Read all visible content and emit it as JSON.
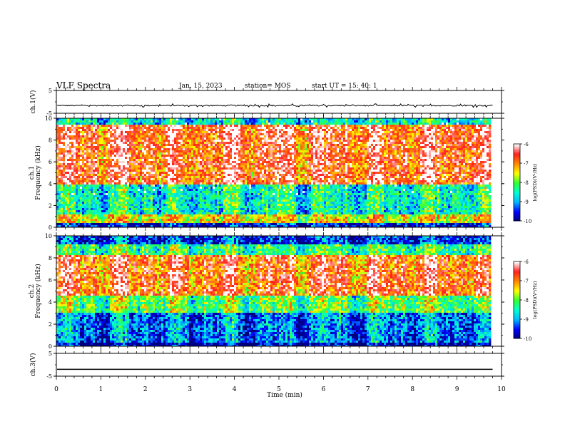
{
  "header": {
    "title": "VLF Spectra",
    "date": "Jan. 15, 2023",
    "station": "station= MOS",
    "start": "start UT =  15: 40: 1"
  },
  "colors": {
    "background": "#ffffff",
    "axis": "#000000",
    "colormap": [
      "#00007a",
      "#0000ff",
      "#00b7ff",
      "#00ffd0",
      "#33ff33",
      "#ffff00",
      "#ff8800",
      "#ff2020",
      "#ffffff"
    ]
  },
  "chart_data": [
    {
      "id": "ch1-waveform",
      "type": "line",
      "ylabel": "ch.1(V)",
      "ylim": [
        -5,
        5
      ],
      "yticks": [
        5,
        -5
      ],
      "xlim": [
        0,
        10
      ],
      "baseline": -1.6,
      "series": [
        {
          "values_note": "",
          "level": -1.6
        }
      ]
    },
    {
      "id": "ch1-spectrogram",
      "type": "heatmap",
      "ylabel": "ch.1\nFrequency (kHz)",
      "ylim": [
        0,
        10
      ],
      "yticks": [
        0,
        2,
        4,
        6,
        8,
        10
      ],
      "xlim": [
        0,
        10
      ],
      "data_xmax": 9.8,
      "colorbar": {
        "label": "log(PSD)(V²/Hz)",
        "range": [
          -10,
          -6
        ],
        "ticks": [
          -6,
          -7,
          -8,
          -9,
          -10
        ]
      }
    },
    {
      "id": "ch2-spectrogram",
      "type": "heatmap",
      "ylabel": "ch.2\nFrequency (kHz)",
      "ylim": [
        0,
        10
      ],
      "yticks": [
        0,
        2,
        4,
        6,
        8,
        10
      ],
      "xlim": [
        0,
        10
      ],
      "data_xmax": 9.8,
      "colorbar": {
        "label": "log(PSD)(V²/Hz)",
        "range": [
          -10,
          -6
        ],
        "ticks": [
          -6,
          -7,
          -8,
          -9,
          -10
        ]
      }
    },
    {
      "id": "ch3-waveform",
      "type": "line",
      "ylabel": "ch.3(V)",
      "ylim": [
        -5,
        5
      ],
      "yticks": [
        5,
        -5
      ],
      "xlim": [
        0,
        10
      ],
      "level": -2.0
    }
  ],
  "xaxis": {
    "label": "Time (min)",
    "ticks": [
      0,
      1,
      2,
      3,
      4,
      5,
      6,
      7,
      8,
      9,
      10
    ]
  }
}
